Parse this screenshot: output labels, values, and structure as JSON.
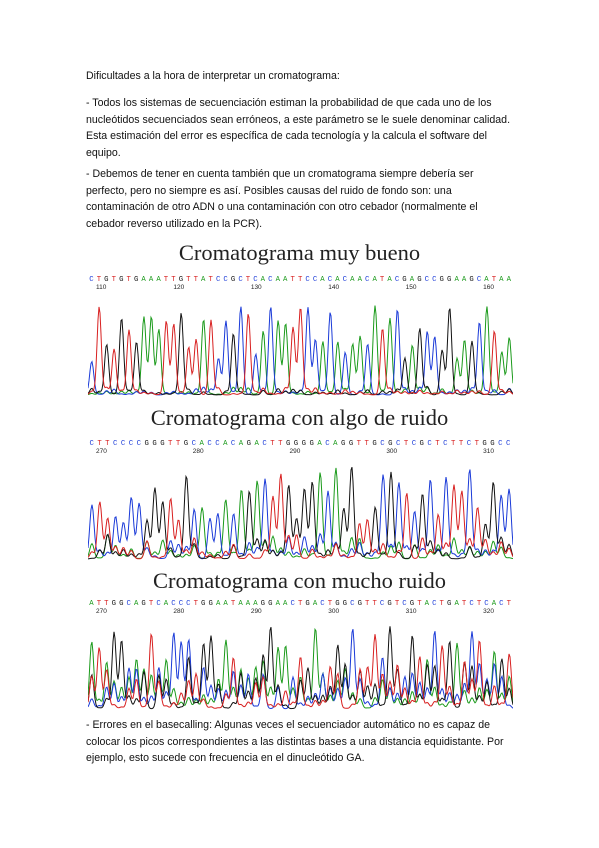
{
  "paragraphs": {
    "heading": "Dificultades a la hora de interpretar un cromatograma:",
    "p1": "- Todos los sistemas de secuenciación estiman la probabilidad de que cada uno de los nucleótidos secuenciados sean erróneos, a este parámetro se le suele denominar calidad. Esta estimación del error es específica de cada tecnología y la calcula el software del equipo.",
    "p2": "- Debemos de tener en cuenta también que un cromatograma siempre debería ser perfecto, pero no siempre es así. Posibles causas del ruido de fondo son: una contaminación de otro ADN o una contaminación con otro cebador (normalmente el cebador reverso utilizado en la PCR).",
    "p3": "- Errores en el basecalling: Algunas veces el secuenciador automático no es capaz de colocar los picos correspondientes a las distintas bases a una distancia equidistante. Por ejemplo, esto sucede con frecuencia en el dinucleótido GA."
  },
  "base_colors": {
    "A": "#1a9a1a",
    "C": "#1a3ad8",
    "G": "#111111",
    "T": "#d82020"
  },
  "chromatograms": [
    {
      "title": "Cromatograma muy bueno",
      "sequence": "CTGTGTGAAATTGTTATCCGCTCACAATTCCACACAACATACGAGCCGGAAGCATAA",
      "ticks": [
        "110",
        "120",
        "130",
        "140",
        "150",
        "160"
      ],
      "noise": "low"
    },
    {
      "title": "Cromatograma con algo de ruido",
      "sequence": "CTTCCCCGGGTTGCACCACAGACTTGGGGACAGGTTGCGCTCGCTCTTCTGGCC",
      "ticks": [
        "270",
        "280",
        "290",
        "300",
        "310"
      ],
      "noise": "medium"
    },
    {
      "title": "Cromatograma con mucho ruido",
      "sequence": "ATTGGCAGTCACCCTGGAATAAAGGAACTGACTGGCGTTCGTCGTACTGATCTCACT",
      "ticks": [
        "270",
        "280",
        "290",
        "300",
        "310",
        "320"
      ],
      "noise": "high"
    }
  ]
}
